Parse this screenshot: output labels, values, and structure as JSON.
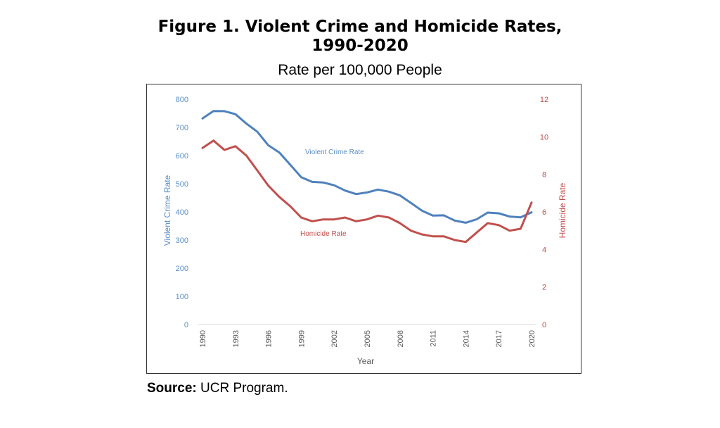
{
  "title_line1": "Figure 1. Violent Crime and Homicide Rates,",
  "title_line2": "1990-2020",
  "subtitle": "Rate per 100,000 People",
  "source_label": "Source:",
  "source_text": "UCR Program.",
  "colors": {
    "violent": "#4f81bd",
    "homicide": "#c0504d",
    "frame": "#333333"
  },
  "chart_data": {
    "type": "line",
    "title": "Figure 1. Violent Crime and Homicide Rates, 1990-2020",
    "subtitle": "Rate per 100,000 People",
    "xlabel": "Year",
    "ylabel": "Violent Crime Rate",
    "y2label": "Homicide Rate",
    "ylim": [
      0,
      800
    ],
    "y2lim": [
      0,
      12
    ],
    "yticks": [
      "0",
      "100",
      "200",
      "300",
      "400",
      "500",
      "600",
      "700",
      "800"
    ],
    "y2ticks": [
      "0",
      "2",
      "4",
      "6",
      "8",
      "10",
      "12"
    ],
    "xticks": [
      "1990",
      "1993",
      "1996",
      "1999",
      "2002",
      "2005",
      "2008",
      "2011",
      "2014",
      "2017",
      "2020"
    ],
    "grid": false,
    "x": [
      1990,
      1991,
      1992,
      1993,
      1994,
      1995,
      1996,
      1997,
      1998,
      1999,
      2000,
      2001,
      2002,
      2003,
      2004,
      2005,
      2006,
      2007,
      2008,
      2009,
      2010,
      2011,
      2012,
      2013,
      2014,
      2015,
      2016,
      2017,
      2018,
      2019,
      2020
    ],
    "series": [
      {
        "name": "Violent Crime Rate",
        "axis": "left",
        "values": [
          731.8,
          758.2,
          757.7,
          747.1,
          713.6,
          684.5,
          636.6,
          611.0,
          567.6,
          523.0,
          506.5,
          504.5,
          494.4,
          475.8,
          463.2,
          469.0,
          479.3,
          471.8,
          458.6,
          431.9,
          404.5,
          387.1,
          387.8,
          369.1,
          361.6,
          373.7,
          397.5,
          394.9,
          383.4,
          380.8,
          398.5
        ]
      },
      {
        "name": "Homicide Rate",
        "axis": "right",
        "values": [
          9.4,
          9.8,
          9.3,
          9.5,
          9.0,
          8.2,
          7.4,
          6.8,
          6.3,
          5.7,
          5.5,
          5.6,
          5.6,
          5.7,
          5.5,
          5.6,
          5.8,
          5.7,
          5.4,
          5.0,
          4.8,
          4.7,
          4.7,
          4.5,
          4.4,
          4.9,
          5.4,
          5.3,
          5.0,
          5.1,
          6.5
        ]
      }
    ]
  }
}
